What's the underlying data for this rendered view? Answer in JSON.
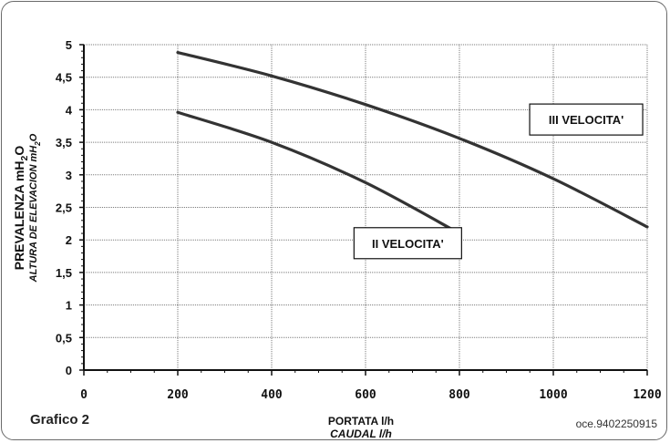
{
  "chart_data": {
    "type": "line",
    "x_ticks": [
      0,
      200,
      400,
      600,
      800,
      1000,
      1200
    ],
    "y_ticks": [
      "0",
      "0,5",
      "1",
      "1,5",
      "2",
      "2,5",
      "3",
      "3,5",
      "4",
      "4,5",
      "5"
    ],
    "y_tick_values": [
      0,
      0.5,
      1,
      1.5,
      2,
      2.5,
      3,
      3.5,
      4,
      4.5,
      5
    ],
    "xlim": [
      0,
      1200
    ],
    "ylim": [
      0,
      5
    ],
    "grid": true,
    "xlabel_1": "PORTATA l/h",
    "xlabel_2": "CAUDAL  l/h",
    "ylabel_1": "PREVALENZA mH",
    "ylabel_1_sub": "2",
    "ylabel_1_end": "O",
    "ylabel_2": "ALTURA DE ELEVACION mH",
    "ylabel_2_sub": "2",
    "ylabel_2_end": "O",
    "series": [
      {
        "name": "III VELOCITA'",
        "x": [
          200,
          400,
          600,
          800,
          1000,
          1200
        ],
        "y": [
          4.88,
          4.52,
          4.08,
          3.56,
          2.94,
          2.2
        ]
      },
      {
        "name": "II VELOCITA'",
        "x": [
          200,
          400,
          600,
          800
        ],
        "y": [
          3.96,
          3.5,
          2.88,
          2.1
        ]
      }
    ]
  },
  "footer": {
    "title": "Grafico 2",
    "code": "oce.9402250915"
  },
  "colors": {
    "curve": "#333333",
    "grid": "#7a7a7a",
    "axis": "#111111"
  }
}
